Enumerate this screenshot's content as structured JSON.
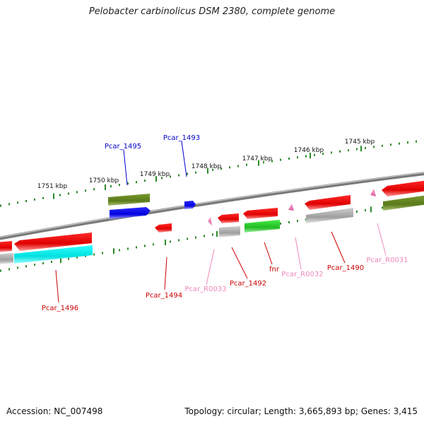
{
  "title": "Pelobacter carbinolicus DSM 2380, complete genome",
  "footer": {
    "accession": "Accession: NC_007498",
    "summary": "Topology: circular; Length: 3,665,893 bp; Genes: 3,415"
  },
  "colors": {
    "backbone": "#8a8a8a",
    "tick": "#2a8a2a",
    "label_red": "#cc0000",
    "label_blue": "#0000cc",
    "label_pink": "#ee88bb"
  },
  "scale_labels": [
    "1751 kbp",
    "1750 kbp",
    "1749 kbp",
    "1748 kbp",
    "1747 kbp",
    "1746 kbp",
    "1745 kbp"
  ],
  "genes": [
    {
      "label": "Pcar_1496",
      "color": "red"
    },
    {
      "label": "Pcar_1495",
      "color": "blue"
    },
    {
      "label": "Pcar_1494",
      "color": "red"
    },
    {
      "label": "Pcar_1493",
      "color": "blue"
    },
    {
      "label": "Pcar_R0033",
      "color": "pink"
    },
    {
      "label": "Pcar_1492",
      "color": "red"
    },
    {
      "label": "fnr",
      "color": "red"
    },
    {
      "label": "Pcar_R0032",
      "color": "pink"
    },
    {
      "label": "Pcar_1490",
      "color": "red"
    },
    {
      "label": "Pcar_R0031",
      "color": "pink"
    }
  ]
}
